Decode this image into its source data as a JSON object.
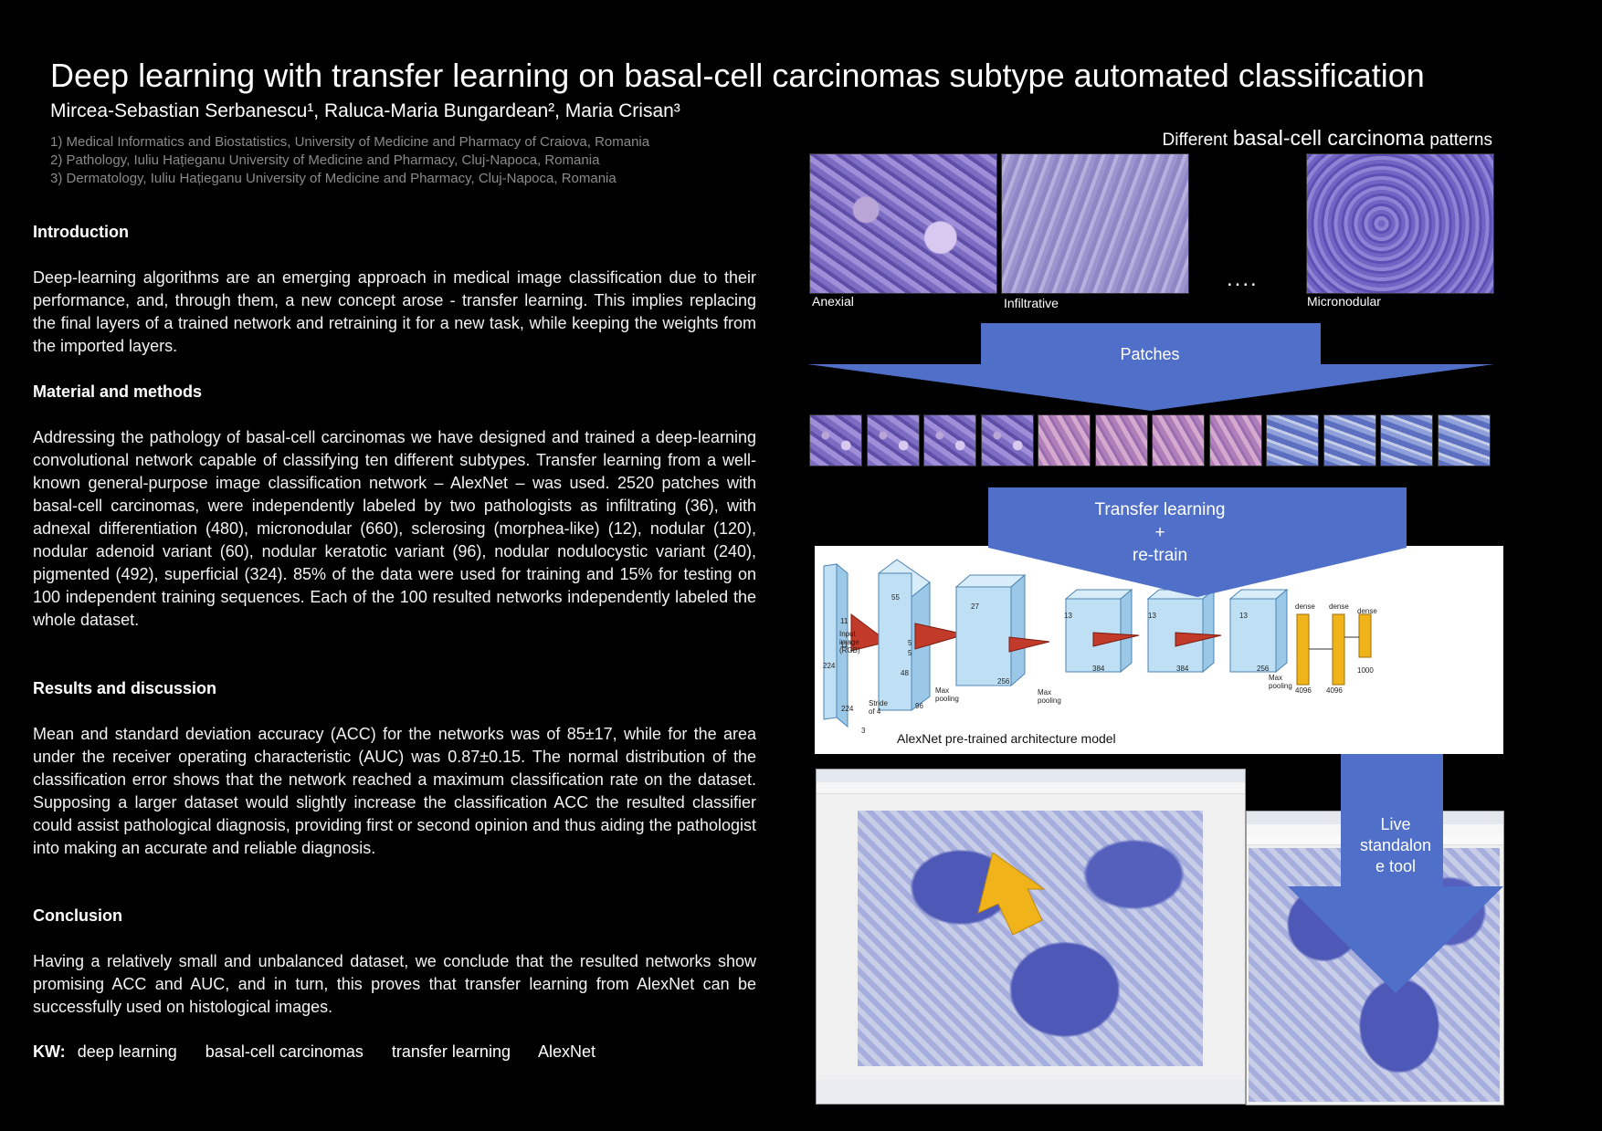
{
  "header": {
    "title": "Deep learning with transfer learning on basal-cell carcinomas subtype automated classification",
    "authors": "Mircea-Sebastian Serbanescu¹, Raluca-Maria Bungardean², Maria Crisan³",
    "affiliations": [
      "1) Medical Informatics and Biostatistics, University of Medicine and Pharmacy of Craiova, Romania",
      "2) Pathology, Iuliu Hațieganu University of Medicine and Pharmacy, Cluj-Napoca, Romania",
      "3) Dermatology, Iuliu Hațieganu University of Medicine and Pharmacy, Cluj-Napoca, Romania"
    ]
  },
  "sections": {
    "introduction": {
      "heading": "Introduction",
      "text": "Deep-learning algorithms are an emerging approach in medical image classification due to their performance, and, through them, a new concept arose - transfer learning. This implies replacing the final layers of a trained network and retraining it for a new task, while keeping the weights from the imported layers."
    },
    "methods": {
      "heading": "Material and methods",
      "text": "Addressing the pathology of basal-cell carcinomas we have designed and trained a deep-learning convolutional network capable of classifying ten different subtypes. Transfer learning from a well-known general-purpose image classification network – AlexNet – was used. 2520 patches with basal-cell carcinomas, were independently labeled by two pathologists as infiltrating (36), with adnexal differentiation (480), micronodular (660), sclerosing (morphea-like) (12), nodular (120), nodular adenoid variant (60), nodular keratotic variant (96), nodular nodulocystic variant (240), pigmented (492), superficial (324). 85% of the data were used for training and 15% for testing on 100 independent training sequences. Each of the 100 resulted networks independently labeled the whole dataset."
    },
    "results": {
      "heading": "Results and discussion",
      "text": "Mean and standard deviation accuracy (ACC) for the networks was of 85±17, while for the area under the receiver operating characteristic (AUC) was 0.87±0.15. The normal distribution of the classification error shows that the network reached a maximum classification rate on the dataset. Supposing a larger dataset would slightly increase the classification ACC the resulted classifier could assist pathological diagnosis, providing first or second opinion and thus aiding the pathologist into making an accurate and reliable diagnosis."
    },
    "conclusion": {
      "heading": "Conclusion",
      "text": "Having a relatively small and unbalanced dataset, we conclude that the resulted networks show promising ACC and AUC, and in turn, this proves that transfer learning from AlexNet can be successfully used on histological images."
    }
  },
  "keywords": {
    "label": "KW:",
    "items": [
      "deep learning",
      "basal-cell carcinomas",
      "transfer learning",
      "AlexNet"
    ]
  },
  "figure": {
    "patterns_title_small": "Different",
    "patterns_title_big": "basal-cell carcinoma",
    "patterns_title_end": "patterns",
    "tile_labels": [
      "Anexial",
      "Infiltrative",
      "Micronodular"
    ],
    "ellipsis": "....",
    "arrow_patches": "Patches",
    "arrow_transfer": [
      "Transfer learning",
      "+",
      "re-train"
    ],
    "alexnet_caption": "AlexNet pre-trained architecture model",
    "alexnet_labels": {
      "input": [
        "Input",
        "image",
        "(RGB)"
      ],
      "stride": [
        "Stride",
        "of 4"
      ],
      "max_pooling": [
        "Max",
        "pooling"
      ],
      "dense": "dense",
      "dims": [
        "224",
        "224",
        "3",
        "11",
        "11",
        "55",
        "5",
        "5",
        "48",
        "96",
        "27",
        "256",
        "13",
        "384",
        "13",
        "384",
        "13",
        "256",
        "4096",
        "4096",
        "1000"
      ]
    },
    "metrics": [
      "ACC 85±17",
      "AUC 0.87±0.15"
    ],
    "arrow_live": [
      "Live",
      "standalon",
      "e tool"
    ]
  },
  "colors": {
    "background": "#000000",
    "arrow": "#4f6fc9",
    "dense_layer": "#f0b41a",
    "pointer_arrow": "#f0b41a",
    "affiliation_text": "#8a8a8a"
  }
}
